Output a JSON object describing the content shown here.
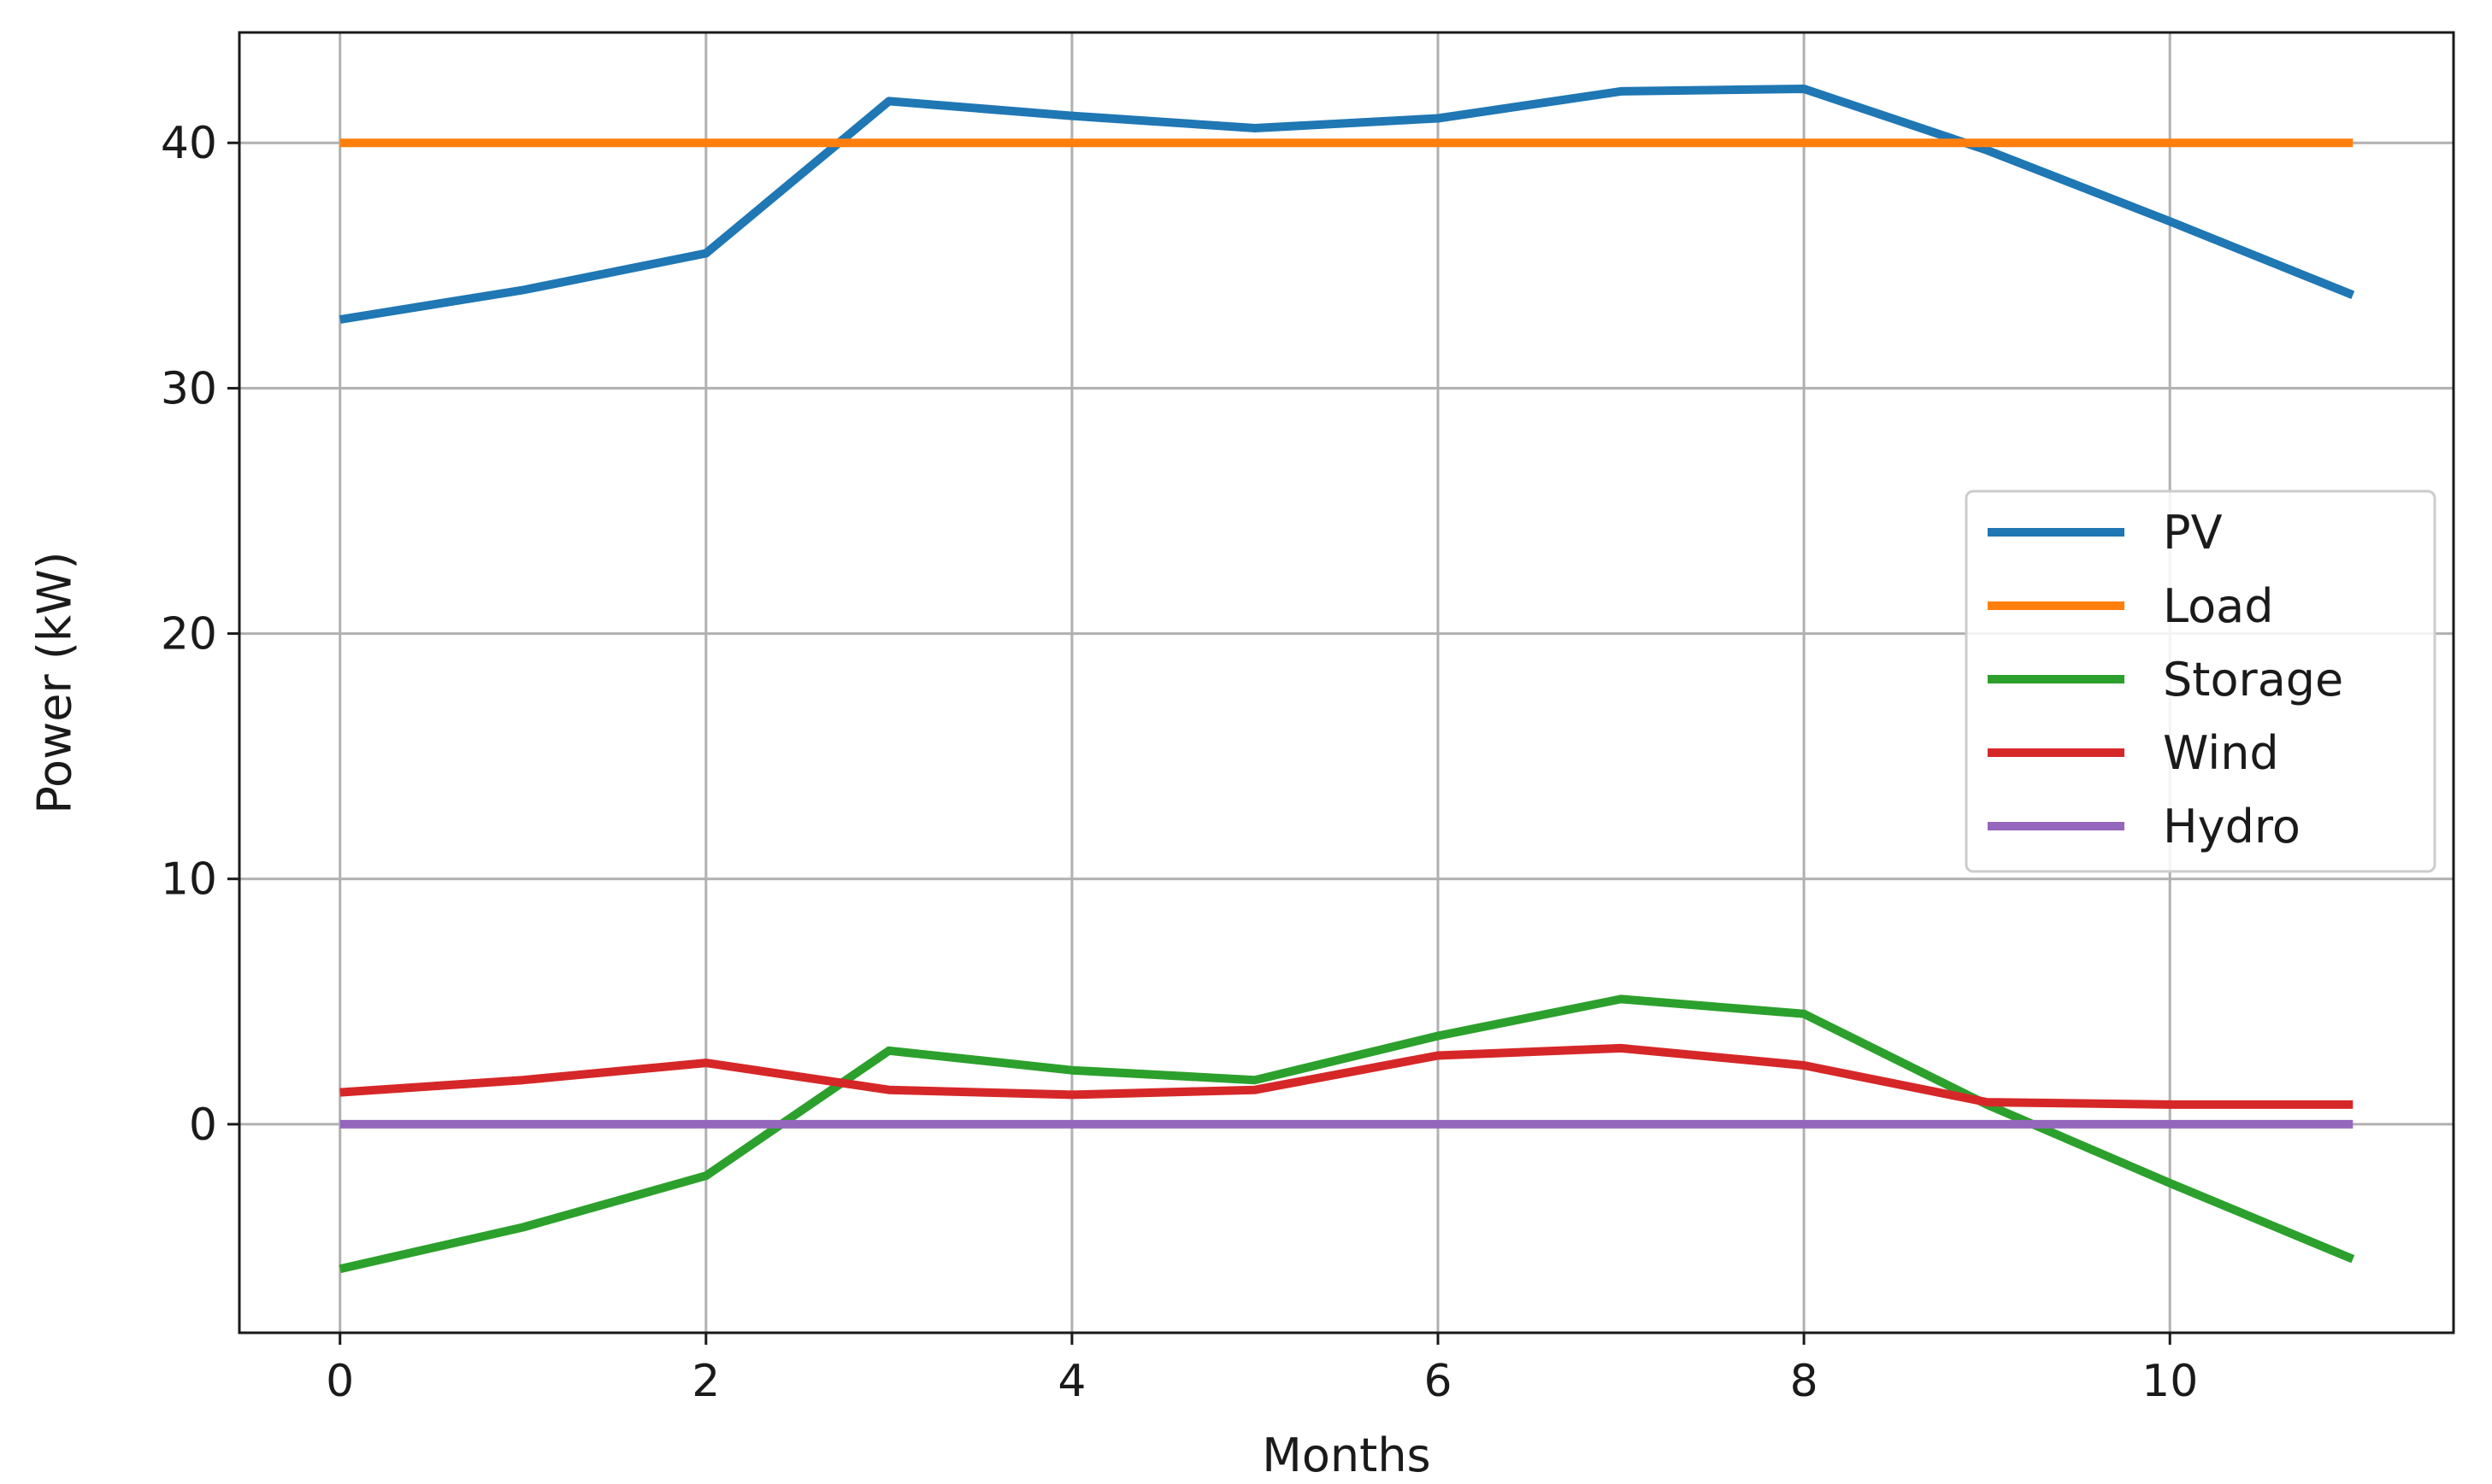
{
  "chart_data": {
    "type": "line",
    "title": "",
    "xlabel": "Months",
    "ylabel": "Power (kW)",
    "x": [
      0,
      1,
      2,
      3,
      4,
      5,
      6,
      7,
      8,
      9,
      10,
      11
    ],
    "xlim": [
      -0.55,
      11.55
    ],
    "ylim": [
      -8.5,
      44.5
    ],
    "xticks": [
      0,
      2,
      4,
      6,
      8,
      10
    ],
    "yticks": [
      0,
      10,
      20,
      30,
      40
    ],
    "grid": true,
    "legend_position": "center-right",
    "series": [
      {
        "name": "PV",
        "color": "#1f77b4",
        "values": [
          32.8,
          34.0,
          35.5,
          41.7,
          41.1,
          40.6,
          41.0,
          42.1,
          42.2,
          39.7,
          36.8,
          33.8
        ]
      },
      {
        "name": "Load",
        "color": "#ff7f0e",
        "values": [
          40,
          40,
          40,
          40,
          40,
          40,
          40,
          40,
          40,
          40,
          40,
          40
        ]
      },
      {
        "name": "Storage",
        "color": "#2ca02c",
        "values": [
          -5.9,
          -4.2,
          -2.1,
          3.0,
          2.2,
          1.8,
          3.6,
          5.1,
          4.5,
          0.8,
          -2.4,
          -5.5
        ]
      },
      {
        "name": "Wind",
        "color": "#d62728",
        "values": [
          1.3,
          1.8,
          2.5,
          1.4,
          1.2,
          1.4,
          2.8,
          3.1,
          2.4,
          0.9,
          0.8,
          0.8
        ]
      },
      {
        "name": "Hydro",
        "color": "#9467bd",
        "values": [
          0,
          0,
          0,
          0,
          0,
          0,
          0,
          0,
          0,
          0,
          0,
          0
        ]
      }
    ]
  }
}
